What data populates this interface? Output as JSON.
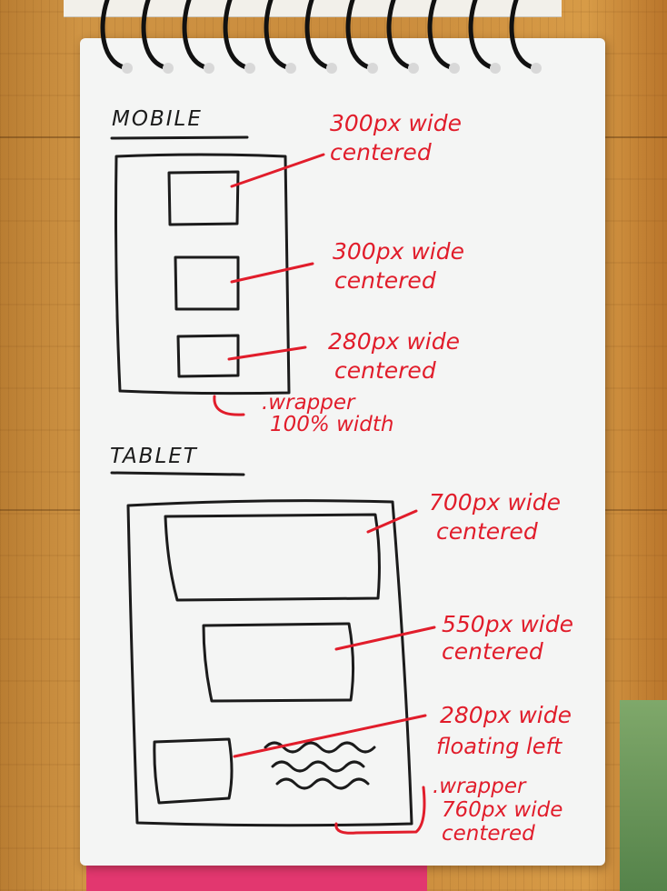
{
  "colors": {
    "ink_black": "#1b1b1b",
    "ink_red": "#e11d2b",
    "paper": "#f4f5f4",
    "wood": "#cf9444"
  },
  "mobile": {
    "heading": "MOBILE",
    "notes": [
      {
        "line1": "300px wide",
        "line2": "centered"
      },
      {
        "line1": "300px wide",
        "line2": "centered"
      },
      {
        "line1": "280px wide",
        "line2": "centered"
      }
    ],
    "wrapper": {
      "line1": ".wrapper",
      "line2": "100% width"
    }
  },
  "tablet": {
    "heading": "TABLET",
    "notes": [
      {
        "line1": "700px wide",
        "line2": "centered"
      },
      {
        "line1": "550px wide",
        "line2": "centered"
      },
      {
        "line1": "280px wide",
        "line2": "floating left"
      }
    ],
    "wrapper": {
      "line1": ".wrapper",
      "line2": "760px wide",
      "line3": "centered"
    }
  }
}
